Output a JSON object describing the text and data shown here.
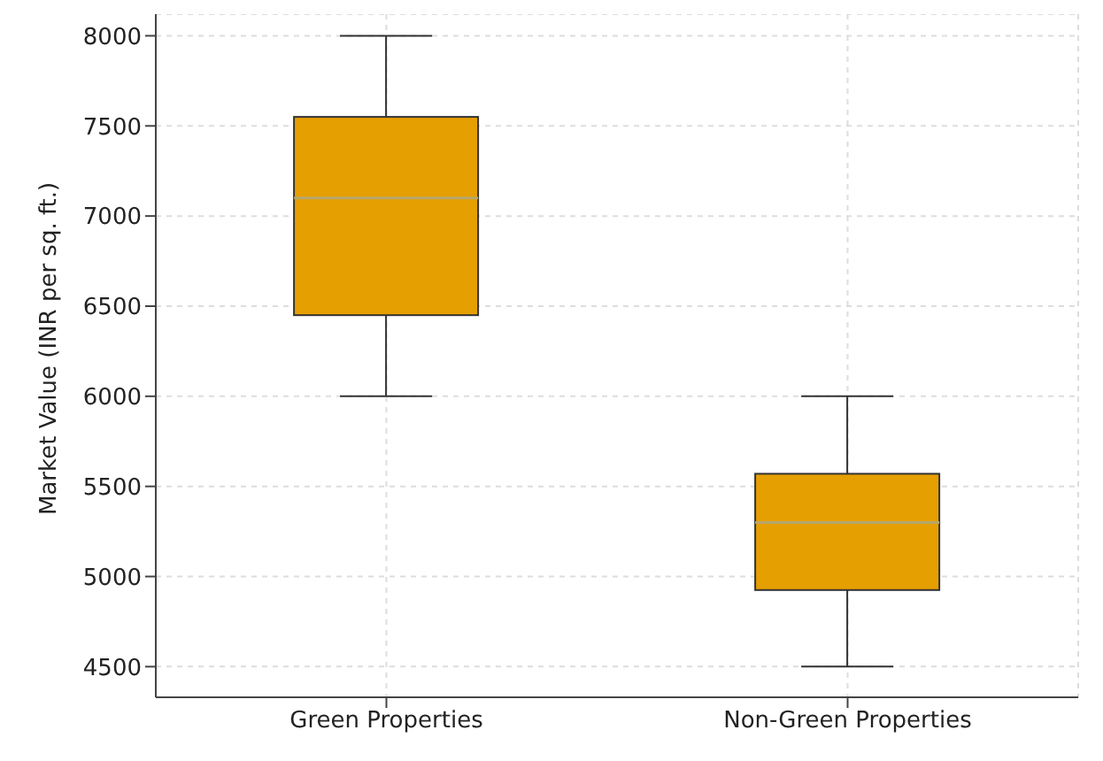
{
  "chart_data": {
    "type": "box",
    "ylabel": "Market Value (INR per sq. ft.)",
    "categories": [
      "Green Properties",
      "Non-Green Properties"
    ],
    "series": [
      {
        "color": "#e69f00",
        "boxes": [
          {
            "low": 6000,
            "q1": 6450,
            "median": 7100,
            "q3": 7550,
            "high": 8000
          },
          {
            "low": 4500,
            "q1": 4925,
            "median": 5300,
            "q3": 5570,
            "high": 6000
          }
        ]
      }
    ],
    "ylim": [
      4330,
      8120
    ],
    "yticks": [
      4500,
      5000,
      5500,
      6000,
      6500,
      7000,
      7500,
      8000
    ],
    "grid": true
  }
}
